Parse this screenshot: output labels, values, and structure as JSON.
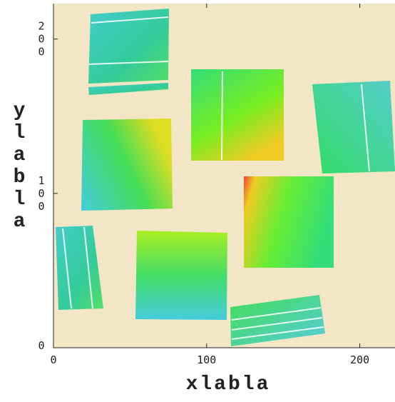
{
  "chart_data": {
    "type": "image",
    "xlabel": "xlabla",
    "ylabel": "ylabla",
    "xlim": [
      0,
      223
    ],
    "ylim": [
      0,
      223
    ],
    "xticks": [
      0,
      100,
      200
    ],
    "yticks": [
      0,
      100,
      200
    ]
  }
}
